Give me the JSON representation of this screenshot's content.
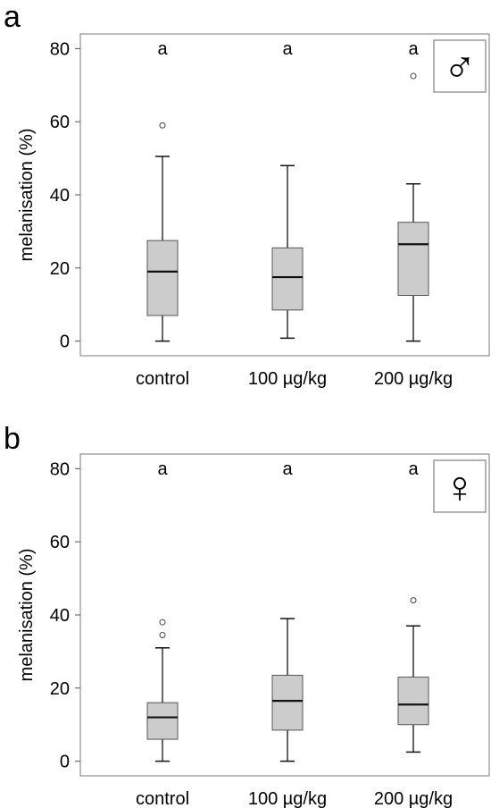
{
  "chart_data": [
    {
      "type": "box",
      "panel_label": "a",
      "sex_symbol": "♂",
      "ylabel": "melanisation (%)",
      "ylim": [
        -4,
        84
      ],
      "yticks": [
        0,
        20,
        40,
        60,
        80
      ],
      "ytick_labels": [
        "0",
        "20",
        "40",
        "60",
        "80"
      ],
      "categories": [
        "control",
        "100 µg/kg",
        "200 µg/kg"
      ],
      "significance_letters": [
        "a",
        "a",
        "a"
      ],
      "box_color": "#cccccc",
      "boxes": [
        {
          "category": "control",
          "min": 0,
          "q1": 7.0,
          "median": 19.0,
          "q3": 27.5,
          "max": 50.5,
          "outliers": [
            59.0
          ]
        },
        {
          "category": "100 µg/kg",
          "min": 0.8,
          "q1": 8.5,
          "median": 17.5,
          "q3": 25.5,
          "max": 48.0,
          "outliers": []
        },
        {
          "category": "200 µg/kg",
          "min": 0,
          "q1": 12.5,
          "median": 26.5,
          "q3": 32.5,
          "max": 43.0,
          "outliers": [
            72.5
          ]
        }
      ]
    },
    {
      "type": "box",
      "panel_label": "b",
      "sex_symbol": "♀",
      "ylabel": "melanisation (%)",
      "ylim": [
        -4,
        84
      ],
      "yticks": [
        0,
        20,
        40,
        60,
        80
      ],
      "ytick_labels": [
        "0",
        "20",
        "40",
        "60",
        "80"
      ],
      "categories": [
        "control",
        "100 µg/kg",
        "200 µg/kg"
      ],
      "significance_letters": [
        "a",
        "a",
        "a"
      ],
      "box_color": "#cccccc",
      "boxes": [
        {
          "category": "control",
          "min": 0,
          "q1": 6.0,
          "median": 12.0,
          "q3": 16.0,
          "max": 31.0,
          "outliers": [
            34.5,
            38.0
          ]
        },
        {
          "category": "100 µg/kg",
          "min": 0,
          "q1": 8.5,
          "median": 16.5,
          "q3": 23.5,
          "max": 39.0,
          "outliers": []
        },
        {
          "category": "200 µg/kg",
          "min": 2.5,
          "q1": 10.0,
          "median": 15.5,
          "q3": 23.0,
          "max": 37.0,
          "outliers": [
            44.0
          ]
        }
      ]
    }
  ]
}
